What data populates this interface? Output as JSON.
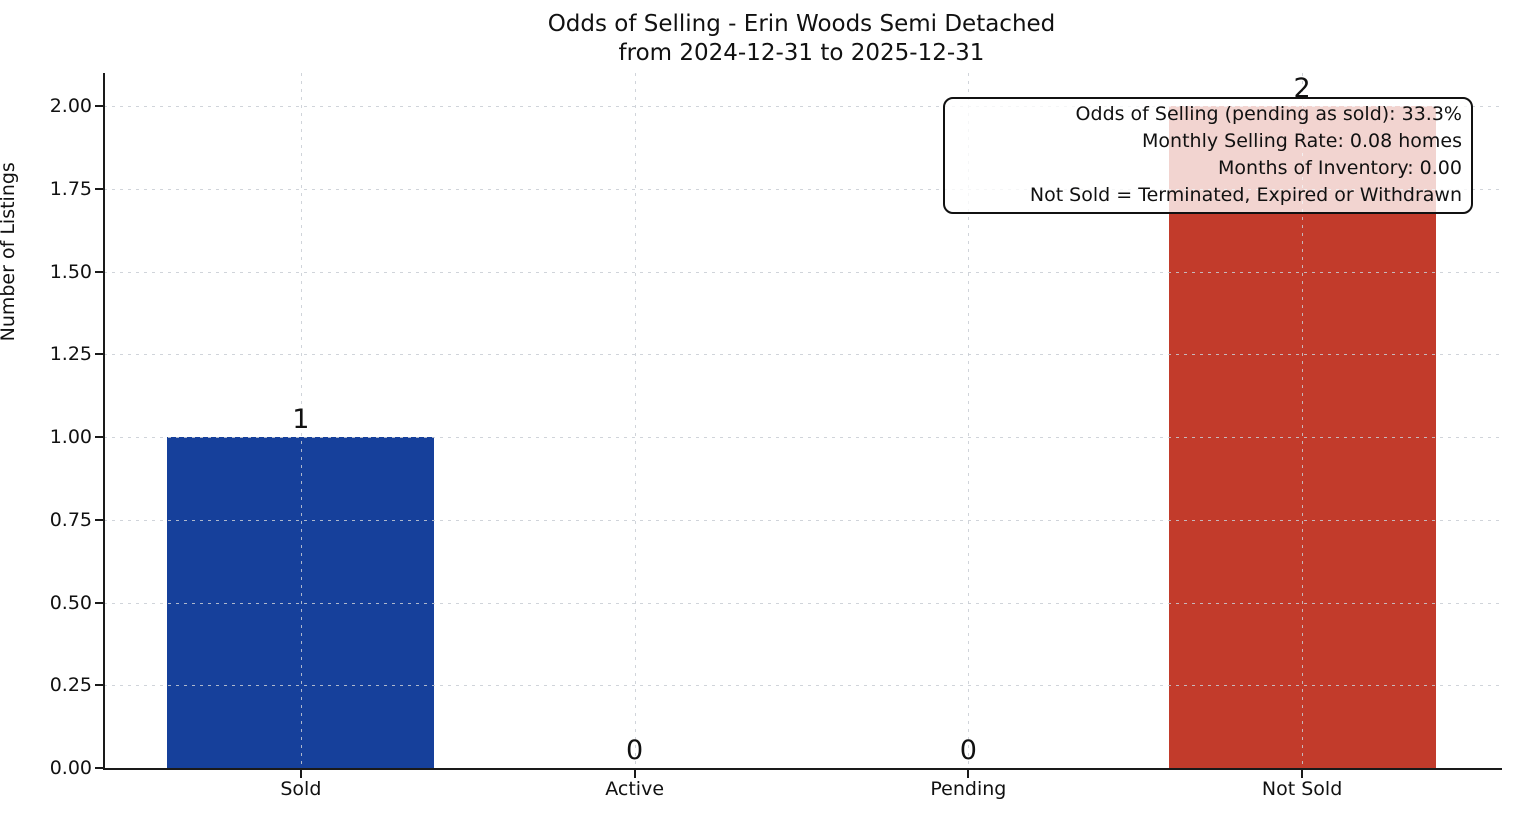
{
  "header": {
    "title_line1": "Odds of Selling - Erin Woods Semi Detached",
    "title_line2": "from 2024-12-31 to 2025-12-31"
  },
  "chart_data": {
    "type": "bar",
    "title": "Odds of Selling - Erin Woods Semi Detached\nfrom 2024-12-31 to 2025-12-31",
    "categories": [
      "Sold",
      "Active",
      "Pending",
      "Not Sold"
    ],
    "values": [
      1,
      0,
      0,
      2
    ],
    "value_labels": [
      "1",
      "0",
      "0",
      "2"
    ],
    "bar_colors": [
      "#16409b",
      "#16409b",
      "#16409b",
      "#c23b2b"
    ],
    "bar_width": 0.8,
    "xlabel": "",
    "ylabel": "Number of Listings",
    "ylim": [
      0,
      2.1
    ],
    "xlim": [
      -0.59,
      3.59
    ],
    "yticks": [
      0,
      0.25,
      0.5,
      0.75,
      1,
      1.25,
      1.5,
      1.75,
      2
    ],
    "ytick_labels": [
      "0.00",
      "0.25",
      "0.50",
      "0.75",
      "1.00",
      "1.25",
      "1.50",
      "1.75",
      "2.00"
    ],
    "grid": "dashed, both axes",
    "legend": "none"
  },
  "annotation": {
    "lines": [
      "Odds of Selling (pending as sold): 33.3%",
      "Monthly Selling Rate: 0.08 homes",
      "Months of Inventory: 0.00",
      "Not Sold = Terminated, Expired or Withdrawn"
    ]
  },
  "colors": {
    "sold_bar": "#16409b",
    "not_sold_bar": "#c23b2b",
    "spine": "#1a1a1a",
    "gridline": "#d2d7dc",
    "background": "#ffffff",
    "text": "#111111",
    "annotation_bg": "rgba(255,255,255,0.78)"
  }
}
